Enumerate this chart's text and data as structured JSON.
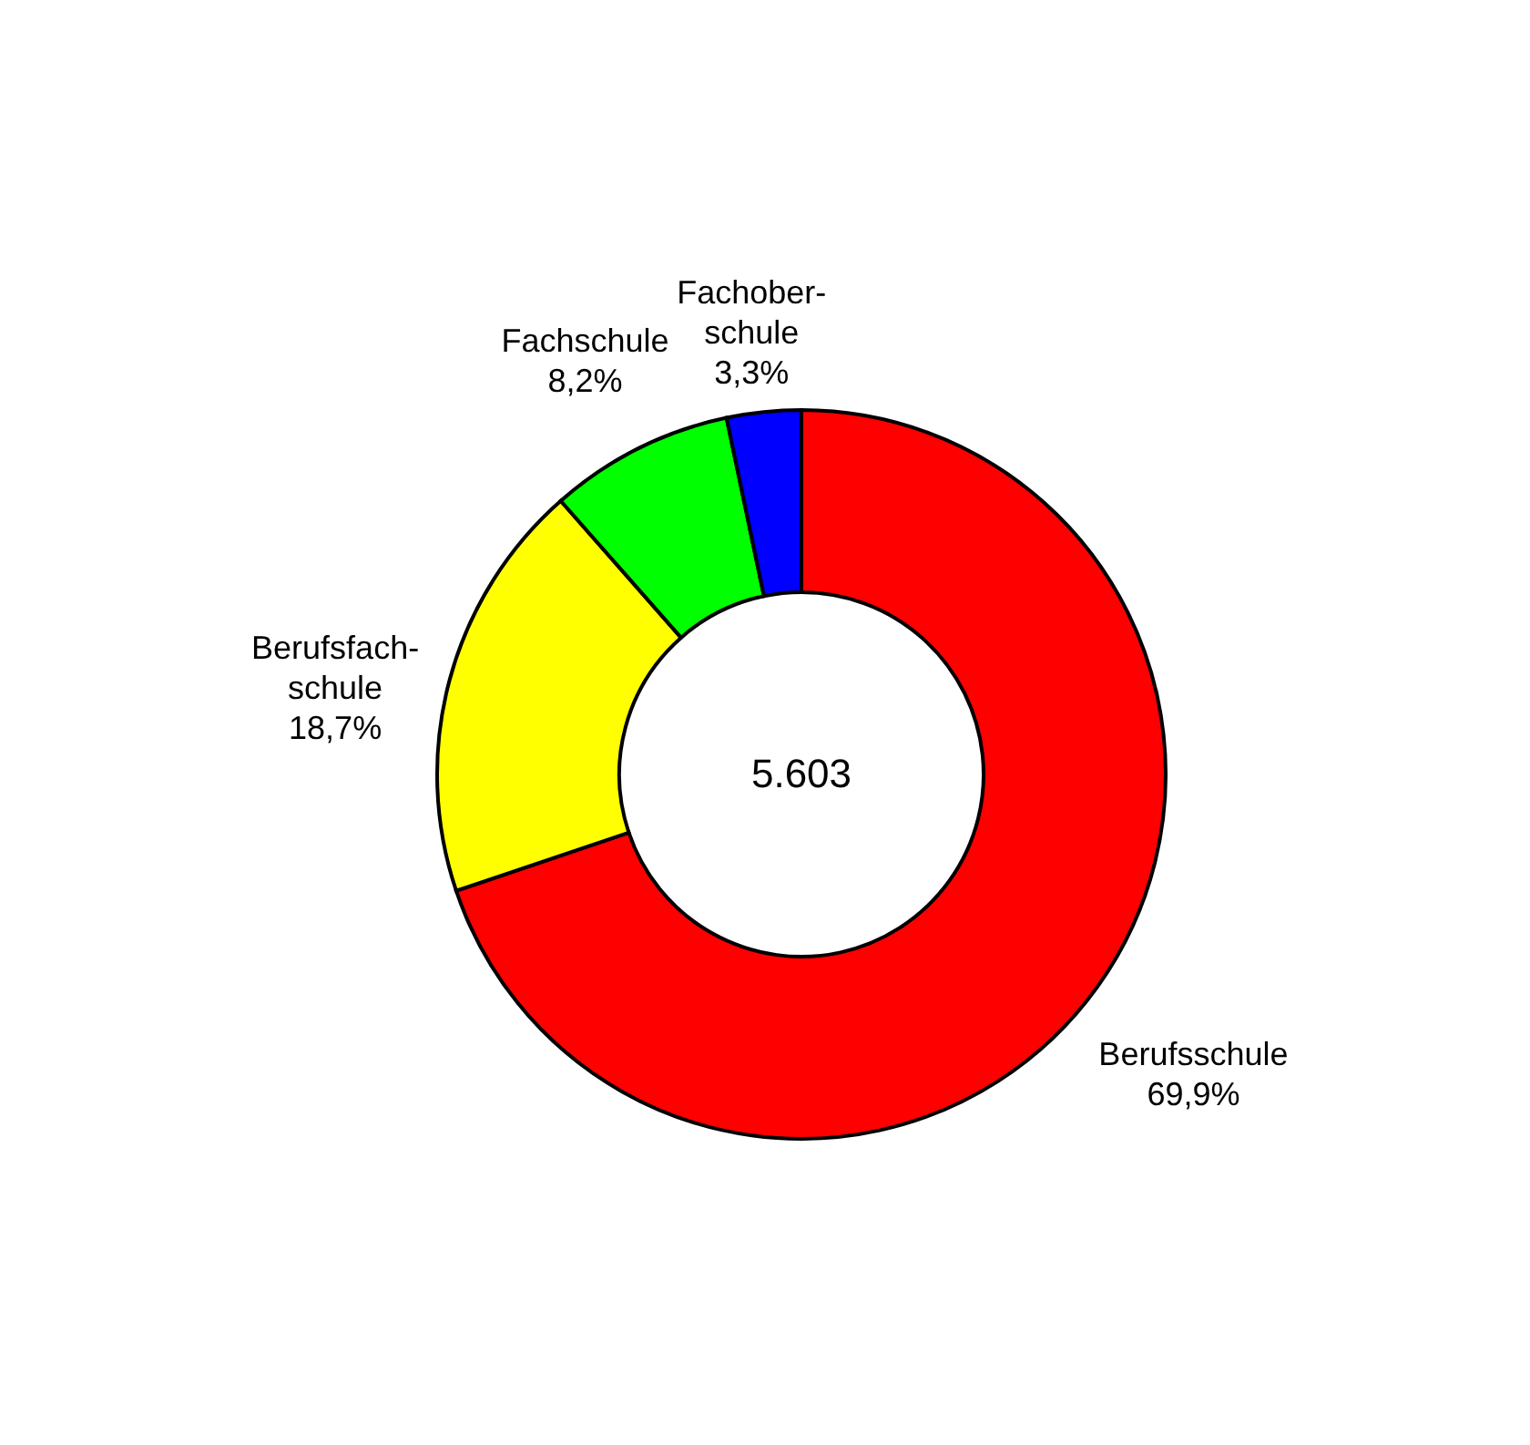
{
  "chart_data": {
    "type": "donut",
    "categories": [
      "Berufsschule",
      "Berufsfach-\nschule",
      "Fachschule",
      "Fachober-\nschule"
    ],
    "values": [
      69.9,
      18.7,
      8.2,
      3.3
    ],
    "colors": [
      "#ff0000",
      "#ffff00",
      "#00ff00",
      "#0000ff"
    ],
    "value_labels": [
      "69,9%",
      "18,7%",
      "8,2%",
      "3,3%"
    ],
    "annotations": [
      "5.603"
    ]
  }
}
